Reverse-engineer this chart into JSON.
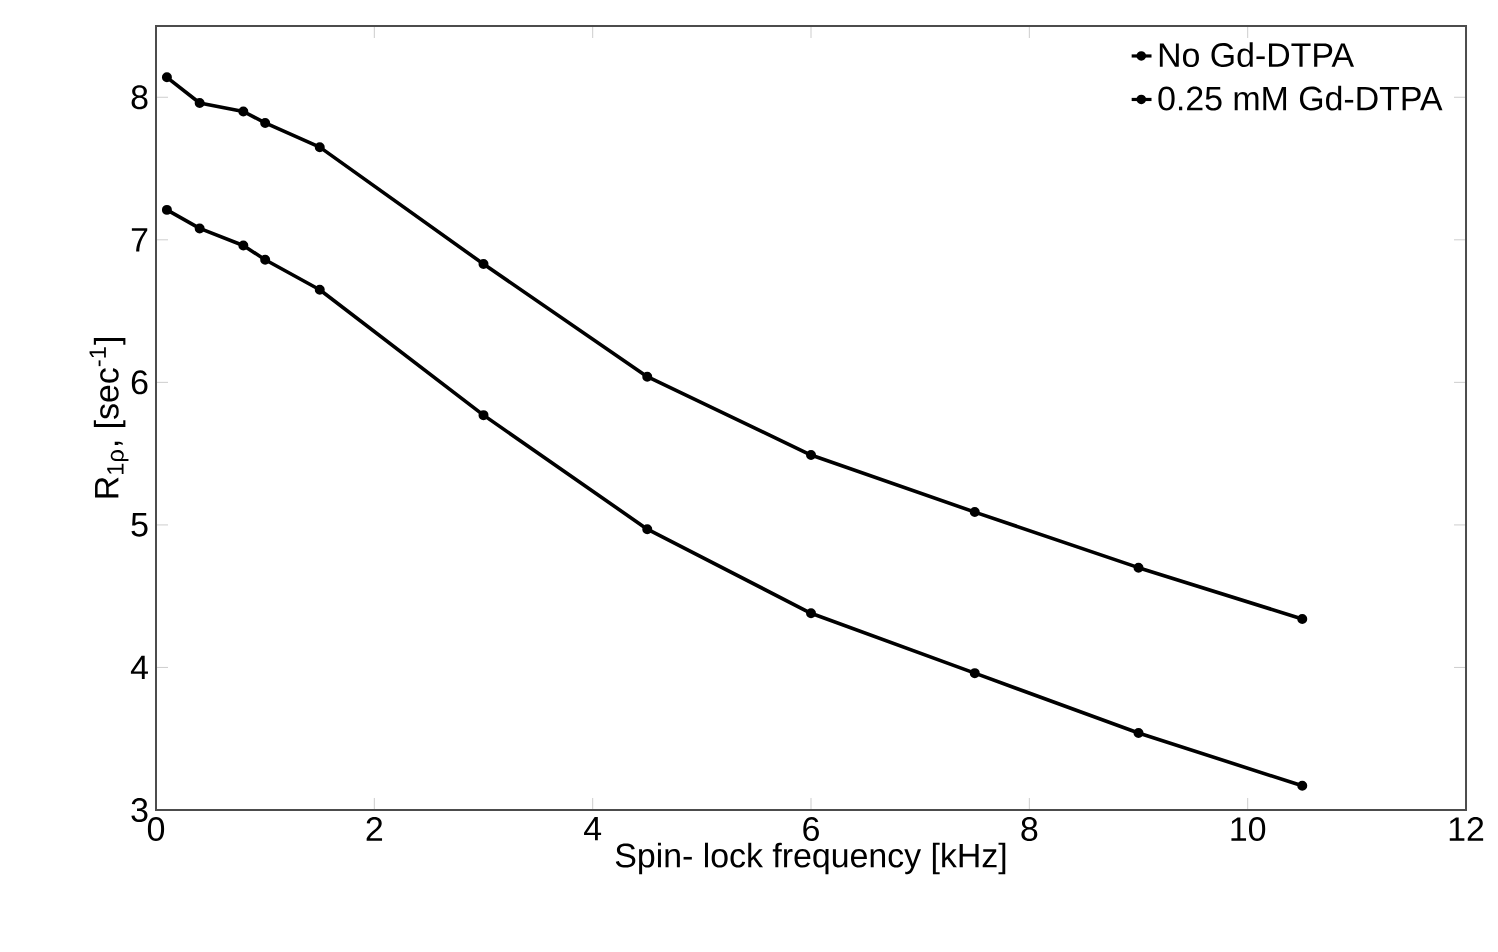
{
  "chart_data": {
    "type": "line",
    "xlabel": "Spin- lock frequency [kHz]",
    "ylabel": "R$_{1ρ}$, [sec$^{-1}$]",
    "x": [
      0.1,
      0.4,
      0.8,
      1.0,
      1.5,
      3.0,
      4.5,
      6.0,
      7.5,
      9.0,
      10.5
    ],
    "series": [
      {
        "name": "No Gd-DTPA",
        "color": "#000000",
        "values": [
          7.21,
          7.08,
          6.96,
          6.86,
          6.65,
          5.77,
          4.97,
          4.38,
          3.96,
          3.54,
          3.17
        ]
      },
      {
        "name": "0.25 mM Gd-DTPA",
        "color": "#000000",
        "values": [
          8.14,
          7.96,
          7.9,
          7.82,
          7.65,
          6.83,
          6.04,
          5.49,
          5.09,
          4.7,
          4.34
        ]
      }
    ],
    "xlim": [
      0,
      12
    ],
    "xticks": [
      0,
      2,
      4,
      6,
      8,
      10,
      12
    ],
    "ylim": [
      3,
      8.5
    ],
    "yticks": [
      3,
      4,
      5,
      6,
      7,
      8
    ],
    "grid": false,
    "legend": "top right",
    "marker": "circle",
    "line_style": "solid"
  }
}
